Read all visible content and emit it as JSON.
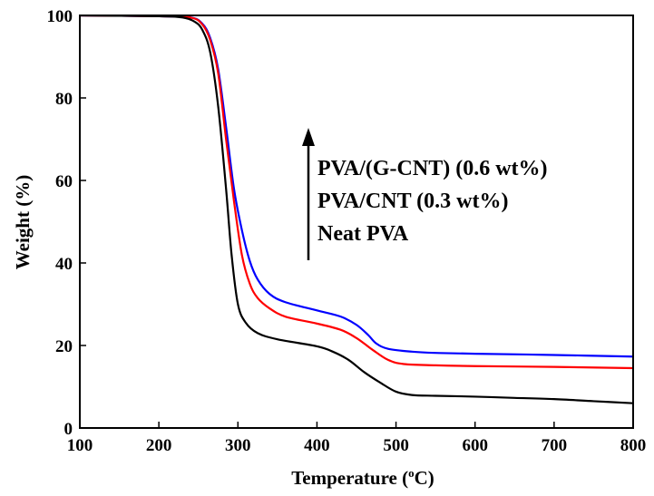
{
  "chart_data": {
    "type": "line",
    "title": "",
    "xlabel": {
      "main": "Temperature (",
      "sup": "o",
      "unit": "C)"
    },
    "ylabel": "Weight (%)",
    "xlim": [
      100,
      800
    ],
    "ylim": [
      0,
      100
    ],
    "xticks": [
      100,
      200,
      300,
      400,
      500,
      600,
      700,
      800
    ],
    "yticks": [
      0,
      20,
      40,
      60,
      80,
      100
    ],
    "xtick_labels": [
      "100",
      "200",
      "300",
      "400",
      "500",
      "600",
      "700",
      "800"
    ],
    "ytick_labels": [
      "0",
      "20",
      "40",
      "60",
      "80",
      "100"
    ],
    "grid": false,
    "legend": {
      "placement": "center-right",
      "entries": [
        "PVA/(G-CNT) (0.6 wt%)",
        "PVA/CNT (0.3 wt%)",
        "Neat PVA"
      ],
      "arrow": "up"
    },
    "series": [
      {
        "name": "Neat PVA",
        "color": "#000000",
        "points": [
          [
            100,
            100
          ],
          [
            200,
            99.8
          ],
          [
            230,
            99.5
          ],
          [
            245,
            98.5
          ],
          [
            255,
            96.5
          ],
          [
            265,
            91
          ],
          [
            275,
            78
          ],
          [
            285,
            58
          ],
          [
            292,
            42
          ],
          [
            300,
            30
          ],
          [
            310,
            25.5
          ],
          [
            325,
            23
          ],
          [
            350,
            21.5
          ],
          [
            400,
            19.8
          ],
          [
            420,
            18.5
          ],
          [
            440,
            16.5
          ],
          [
            460,
            13.5
          ],
          [
            480,
            11
          ],
          [
            500,
            8.8
          ],
          [
            520,
            8
          ],
          [
            550,
            7.8
          ],
          [
            600,
            7.6
          ],
          [
            650,
            7.3
          ],
          [
            700,
            7
          ],
          [
            750,
            6.5
          ],
          [
            800,
            6
          ]
        ]
      },
      {
        "name": "PVA/CNT (0.3 wt%)",
        "color": "#ff0000",
        "points": [
          [
            100,
            100
          ],
          [
            200,
            99.8
          ],
          [
            240,
            99.5
          ],
          [
            255,
            97.8
          ],
          [
            265,
            94
          ],
          [
            275,
            86
          ],
          [
            285,
            70
          ],
          [
            295,
            55
          ],
          [
            305,
            42
          ],
          [
            315,
            35
          ],
          [
            325,
            31.5
          ],
          [
            340,
            29
          ],
          [
            360,
            27
          ],
          [
            400,
            25.3
          ],
          [
            430,
            23.8
          ],
          [
            450,
            21.8
          ],
          [
            470,
            19
          ],
          [
            490,
            16.5
          ],
          [
            510,
            15.5
          ],
          [
            550,
            15.2
          ],
          [
            600,
            15
          ],
          [
            700,
            14.8
          ],
          [
            800,
            14.5
          ]
        ]
      },
      {
        "name": "PVA/(G-CNT) (0.6 wt%)",
        "color": "#0000ff",
        "points": [
          [
            100,
            100
          ],
          [
            200,
            99.8
          ],
          [
            240,
            99.5
          ],
          [
            255,
            98
          ],
          [
            265,
            94.5
          ],
          [
            275,
            87
          ],
          [
            285,
            73
          ],
          [
            295,
            58
          ],
          [
            305,
            48
          ],
          [
            315,
            40.5
          ],
          [
            325,
            36
          ],
          [
            340,
            32.5
          ],
          [
            360,
            30.5
          ],
          [
            400,
            28.5
          ],
          [
            430,
            27
          ],
          [
            450,
            25
          ],
          [
            465,
            22.5
          ],
          [
            475,
            20.5
          ],
          [
            490,
            19.2
          ],
          [
            520,
            18.5
          ],
          [
            550,
            18.2
          ],
          [
            600,
            18
          ],
          [
            700,
            17.7
          ],
          [
            800,
            17.3
          ]
        ]
      }
    ]
  }
}
